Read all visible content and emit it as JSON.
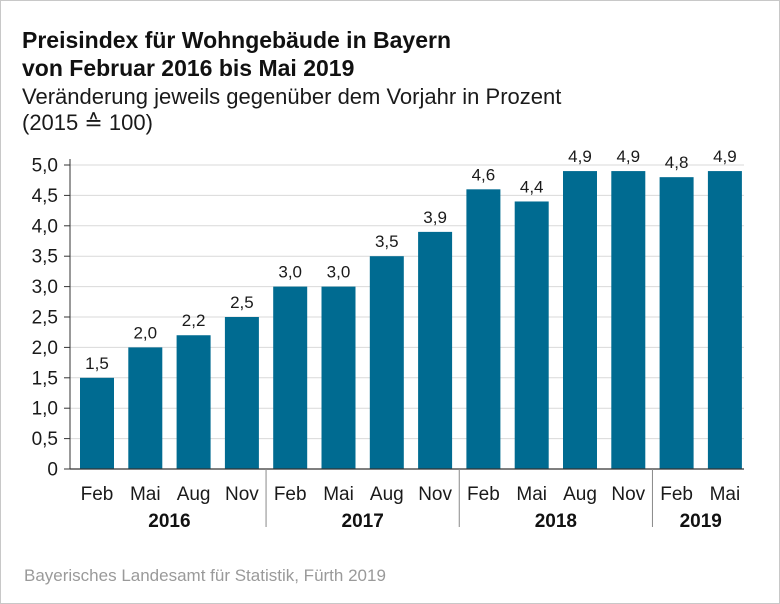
{
  "title_line1": "Preisindex für Wohngebäude in Bayern",
  "title_line2": "von Februar 2016 bis Mai 2019",
  "subtitle_line1": "Veränderung jeweils gegenüber dem Vorjahr in Prozent",
  "subtitle_line2": "(2015 ≙ 100)",
  "source": "Bayerisches Landesamt für Statistik, Fürth 2019",
  "colors": {
    "bar": "#006b91",
    "grid": "#d9d9d9",
    "axis": "#333333",
    "separator": "#888888"
  },
  "chart_data": {
    "type": "bar",
    "title": "Preisindex für Wohngebäude in Bayern von Februar 2016 bis Mai 2019",
    "subtitle": "Veränderung jeweils gegenüber dem Vorjahr in Prozent (2015 ≙ 100)",
    "categories": [
      "Feb",
      "Mai",
      "Aug",
      "Nov",
      "Feb",
      "Mai",
      "Aug",
      "Nov",
      "Feb",
      "Mai",
      "Aug",
      "Nov",
      "Feb",
      "Mai"
    ],
    "values": [
      1.5,
      2.0,
      2.2,
      2.5,
      3.0,
      3.0,
      3.5,
      3.9,
      4.6,
      4.4,
      4.9,
      4.9,
      4.8,
      4.9
    ],
    "value_labels": [
      "1,5",
      "2,0",
      "2,2",
      "2,5",
      "3,0",
      "3,0",
      "3,5",
      "3,9",
      "4,6",
      "4,4",
      "4,9",
      "4,9",
      "4,8",
      "4,9"
    ],
    "groups": [
      {
        "label": "2016",
        "count": 4
      },
      {
        "label": "2017",
        "count": 4
      },
      {
        "label": "2018",
        "count": 4
      },
      {
        "label": "2019",
        "count": 2
      }
    ],
    "ylim": [
      0,
      5
    ],
    "yticks": [
      0,
      0.5,
      1.0,
      1.5,
      2.0,
      2.5,
      3.0,
      3.5,
      4.0,
      4.5,
      5.0
    ],
    "ytick_labels": [
      "0",
      "0,5",
      "1,0",
      "1,5",
      "2,0",
      "2,5",
      "3,0",
      "3,5",
      "4,0",
      "4,5",
      "5,0"
    ],
    "grid": true,
    "legend": "none",
    "xlabel": "",
    "ylabel": ""
  }
}
